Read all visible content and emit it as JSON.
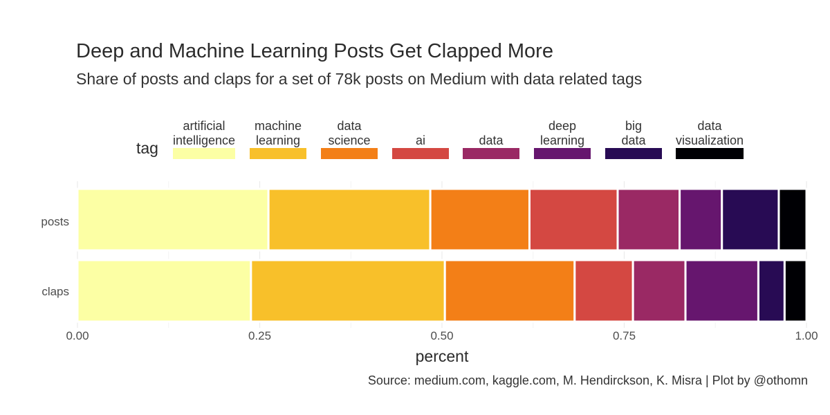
{
  "title": "Deep and Machine Learning Posts Get Clapped More",
  "subtitle": "Share of posts and claps for a set of 78k posts on Medium with data related tags",
  "legend": {
    "title": "tag",
    "items": [
      {
        "label": "artificial\nintelligence",
        "color": "#FCFFA4"
      },
      {
        "label": "machine\nlearning",
        "color": "#F8C02A"
      },
      {
        "label": "data\nscience",
        "color": "#F37F17"
      },
      {
        "label": "ai",
        "color": "#D44842"
      },
      {
        "label": "data",
        "color": "#9A2964"
      },
      {
        "label": "deep\nlearning",
        "color": "#66166E"
      },
      {
        "label": "big\ndata",
        "color": "#280B54"
      },
      {
        "label": "data\nvisualization",
        "color": "#000004"
      }
    ]
  },
  "chart_data": {
    "type": "bar",
    "orientation": "horizontal",
    "stacked": true,
    "categories": [
      "posts",
      "claps"
    ],
    "series": [
      {
        "name": "artificial intelligence",
        "values": [
          0.262,
          0.238
        ]
      },
      {
        "name": "machine learning",
        "values": [
          0.222,
          0.266
        ]
      },
      {
        "name": "data science",
        "values": [
          0.136,
          0.178
        ]
      },
      {
        "name": "ai",
        "values": [
          0.121,
          0.08
        ]
      },
      {
        "name": "data",
        "values": [
          0.085,
          0.072
        ]
      },
      {
        "name": "deep learning",
        "values": [
          0.058,
          0.1
        ]
      },
      {
        "name": "big data",
        "values": [
          0.078,
          0.036
        ]
      },
      {
        "name": "data visualization",
        "values": [
          0.038,
          0.03
        ]
      }
    ],
    "xlabel": "percent",
    "ylabel": "",
    "xlim": [
      0,
      1
    ],
    "xticks": [
      "0.00",
      "0.25",
      "0.50",
      "0.75",
      "1.00"
    ],
    "xtick_values": [
      0,
      0.25,
      0.5,
      0.75,
      1
    ],
    "grid": true
  },
  "caption": "Source: medium.com, kaggle.com, M. Hendirckson, K. Misra | Plot by @othomn"
}
